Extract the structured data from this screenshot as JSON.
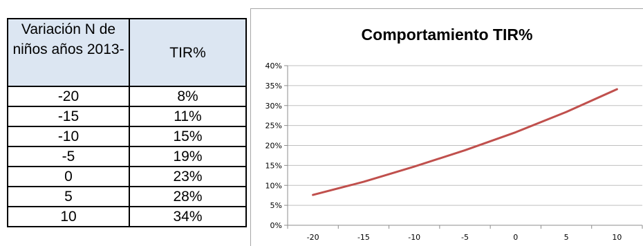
{
  "table": {
    "headers": [
      "Variación N de niños años 2013-",
      "TIR%"
    ],
    "rows": [
      [
        "-20",
        "8%"
      ],
      [
        "-15",
        "11%"
      ],
      [
        "-10",
        "15%"
      ],
      [
        "-5",
        "19%"
      ],
      [
        "0",
        "23%"
      ],
      [
        "5",
        "28%"
      ],
      [
        "10",
        "34%"
      ]
    ]
  },
  "chart_data": {
    "type": "line",
    "title": "Comportamiento TIR%",
    "xlabel": "",
    "ylabel": "",
    "x": [
      -20,
      -15,
      -10,
      -5,
      0,
      5,
      10
    ],
    "x_tick_labels": [
      "-20",
      "-15",
      "-10",
      "-5",
      "0",
      "5",
      "10"
    ],
    "y_tick_labels": [
      "0%",
      "5%",
      "10%",
      "15%",
      "20%",
      "25%",
      "30%",
      "35%",
      "40%"
    ],
    "series": [
      {
        "values": [
          7.6,
          10.9,
          14.7,
          18.8,
          23.3,
          28.4,
          34.1
        ],
        "color": "#c0504d"
      }
    ],
    "ylim": [
      0,
      40
    ],
    "grid": true,
    "legend": false,
    "colors": {
      "line": "#c0504d",
      "grid": "#bfbfbf",
      "axis": "#8c8c8c"
    }
  }
}
